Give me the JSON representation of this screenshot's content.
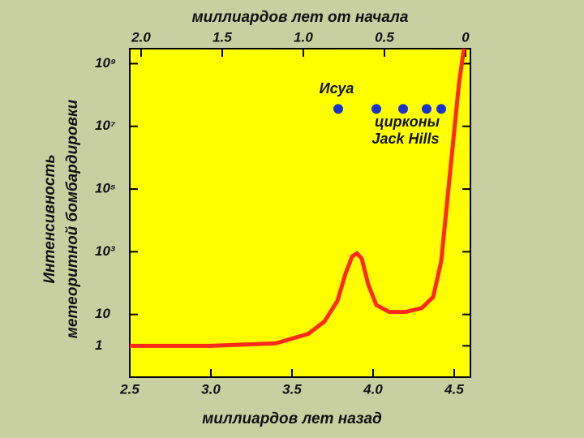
{
  "chart_data": {
    "type": "line",
    "xlabel": "миллиардов лет назад",
    "x2label": "миллиардов лет от начала",
    "ylabel": [
      "Интенсивность",
      "метеоритной бомбардировки"
    ],
    "xlim": [
      2.5,
      4.6
    ],
    "xticks": [
      2.5,
      {
        "value": 3.0,
        "label": "3.0"
      },
      3.5,
      {
        "value": 4.0,
        "label": "4.0"
      },
      4.5
    ],
    "x2lim": [
      2.07,
      -0.03
    ],
    "x2ticks": [
      {
        "value": 2.0,
        "label": "2.0"
      },
      1.5,
      {
        "value": 1.0,
        "label": "1.0"
      },
      0.5,
      0
    ],
    "log_y": true,
    "ylim": [
      0.1,
      3000000000
    ],
    "yticks": [
      1,
      10,
      {
        "value": 1000,
        "label": "10³"
      },
      {
        "value": 100000,
        "label": "10⁵"
      },
      {
        "value": 10000000,
        "label": "10⁷"
      },
      {
        "value": 1000000000,
        "label": "10⁹"
      }
    ],
    "series": [
      {
        "type": "line",
        "color": "#ff2a1a",
        "x": [
          2.5,
          3.0,
          3.4,
          3.6,
          3.7,
          3.78,
          3.83,
          3.87,
          3.9,
          3.93,
          3.97,
          4.02,
          4.1,
          4.2,
          4.3,
          4.37,
          4.42,
          4.46,
          4.5,
          4.53,
          4.56
        ],
        "y": [
          1,
          1,
          1.2,
          2.4,
          6,
          27,
          200,
          700,
          900,
          600,
          90,
          20,
          12,
          12,
          16,
          36,
          500,
          60000,
          7000000,
          250000000,
          3000000000
        ]
      },
      {
        "type": "scatter",
        "color": "#1a33cc",
        "x": [
          3.785,
          4.02,
          4.185,
          4.33,
          4.42
        ],
        "y": [
          36000000,
          36000000,
          36000000,
          36000000,
          36000000
        ]
      }
    ],
    "annotations": [
      "Исуа",
      "цирконы",
      "Jack Hills"
    ]
  }
}
